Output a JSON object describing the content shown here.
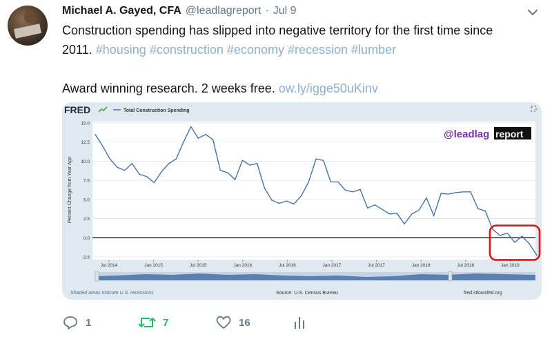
{
  "tweet": {
    "author_name": "Michael A. Gayed, CFA",
    "handle": "@leadlagreport",
    "separator": "·",
    "time": "Jul 9",
    "text_line1": "Construction spending has slipped into negative territory for the first time since",
    "text_line2_prefix": "2011.",
    "hashtags": [
      "#housing",
      "#construction",
      "#economy",
      "#recession",
      "#lumber"
    ],
    "text_line3": "Award winning research. 2 weeks free.",
    "link": "ow.ly/igge50uKinv",
    "icons": {
      "avatar": "avatar",
      "menu": "chevron-down-icon"
    },
    "colors": {
      "link": "#8eb0cc",
      "retweet": "#17bf63",
      "muted": "#657786"
    }
  },
  "card": {
    "logo": "FRED",
    "watermark_prefix": "@leadlag",
    "watermark_suffix": "report",
    "footer_left": "Shaded areas indicate U.S. recessions",
    "footer_center": "Source: U.S. Census Bureau",
    "footer_right": "fred.stlouisfed.org"
  },
  "chart_data": {
    "type": "line",
    "title": "",
    "legend": [
      "Total Construction Spending"
    ],
    "ylabel": "Percent Change from Year Ago",
    "xlabel": "",
    "ylim": [
      -2.5,
      15.0
    ],
    "yticks": [
      "15.0",
      "12.5",
      "10.0",
      "7.5",
      "5.0",
      "2.5",
      "0.0",
      "-2.5"
    ],
    "xticks": [
      "Jul 2014",
      "Jan 2015",
      "Jul 2015",
      "Jan 2016",
      "Jul 2016",
      "Jan 2017",
      "Jul 2017",
      "Jan 2018",
      "Jul 2018",
      "Jan 2019"
    ],
    "series": [
      {
        "name": "Total Construction Spending",
        "color": "#4572a7",
        "values": [
          13.5,
          12.0,
          10.3,
          9.2,
          8.8,
          9.7,
          8.3,
          8.0,
          7.2,
          8.6,
          9.7,
          10.3,
          12.5,
          14.5,
          13.0,
          13.5,
          12.8,
          8.8,
          8.5,
          7.6,
          10.1,
          9.5,
          9.7,
          6.5,
          4.9,
          4.5,
          4.8,
          4.4,
          5.5,
          7.3,
          10.3,
          10.1,
          7.3,
          7.3,
          6.2,
          6.0,
          6.3,
          3.9,
          4.3,
          3.7,
          3.1,
          3.2,
          1.8,
          3.1,
          3.6,
          5.2,
          2.9,
          5.8,
          5.7,
          5.9,
          6.0,
          6.0,
          3.8,
          3.5,
          1.1,
          0.3,
          0.6,
          -0.6,
          0.2,
          -0.8,
          -2.3
        ]
      }
    ],
    "reference_line": 0.0,
    "grid": "horizontal",
    "annotation": "red rounded box around 2019 values"
  },
  "actions": {
    "reply_count": "1",
    "retweet_count": "7",
    "like_count": "16"
  }
}
